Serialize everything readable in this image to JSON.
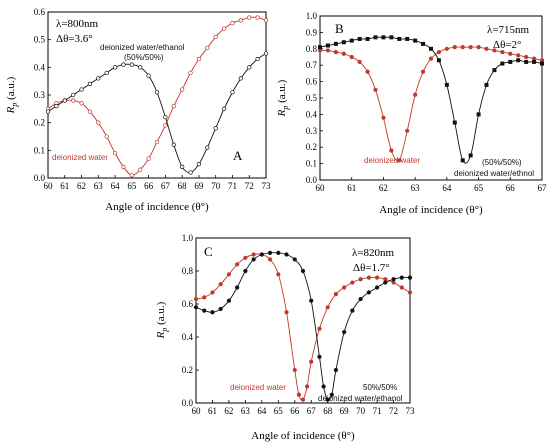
{
  "colors": {
    "red": "#c0392b",
    "black": "#111111"
  },
  "chart_data": [
    {
      "id": "A",
      "type": "line",
      "panel_letter": "A",
      "annotations": {
        "wavelength": "λ=800nm",
        "delta": "Δθ=3.6°"
      },
      "xlabel": "Angle of incidence (θ°)",
      "ylabel": "Rp (a.u.)",
      "ylabel_main": "R",
      "ylabel_sub": "p",
      "ylabel_rest": " (a.u.)",
      "xlim": [
        60,
        73
      ],
      "ylim": [
        0,
        0.6
      ],
      "xticks": [
        "60",
        "61",
        "62",
        "63",
        "64",
        "65",
        "66",
        "67",
        "68",
        "69",
        "70",
        "71",
        "72",
        "73"
      ],
      "yticks": [
        "0.0",
        "0.1",
        "0.2",
        "0.3",
        "0.4",
        "0.5",
        "0.6"
      ],
      "series": [
        {
          "name": "deionized water",
          "color": "#c0392b",
          "marker": "open-circle",
          "x": [
            60.0,
            60.5,
            61.0,
            61.5,
            62.0,
            62.5,
            63.0,
            63.5,
            64.0,
            64.5,
            65.0,
            65.5,
            66.0,
            66.5,
            67.0,
            67.5,
            68.0,
            68.5,
            69.0,
            69.5,
            70.0,
            70.5,
            71.0,
            71.5,
            72.0,
            72.5,
            73.0
          ],
          "y": [
            0.25,
            0.27,
            0.28,
            0.28,
            0.27,
            0.24,
            0.2,
            0.15,
            0.09,
            0.04,
            0.01,
            0.03,
            0.07,
            0.13,
            0.19,
            0.26,
            0.32,
            0.38,
            0.43,
            0.47,
            0.51,
            0.54,
            0.56,
            0.57,
            0.58,
            0.58,
            0.57
          ]
        },
        {
          "name": "deionized water/ethanol (50%/50%)",
          "color": "#111111",
          "marker": "open-circle",
          "x": [
            60.0,
            60.5,
            61.0,
            61.5,
            62.0,
            62.5,
            63.0,
            63.5,
            64.0,
            64.5,
            65.0,
            65.5,
            66.0,
            66.5,
            67.0,
            67.5,
            68.0,
            68.5,
            69.0,
            69.5,
            70.0,
            70.5,
            71.0,
            71.5,
            72.0,
            72.5,
            73.0
          ],
          "y": [
            0.24,
            0.26,
            0.28,
            0.3,
            0.32,
            0.34,
            0.36,
            0.38,
            0.4,
            0.41,
            0.41,
            0.4,
            0.37,
            0.31,
            0.22,
            0.12,
            0.04,
            0.02,
            0.05,
            0.11,
            0.18,
            0.25,
            0.31,
            0.36,
            0.4,
            0.43,
            0.45
          ]
        }
      ],
      "legend_labels": {
        "water": "deionized water",
        "mix_line1": "deionized water/ethanol",
        "mix_line2": "(50%/50%)"
      }
    },
    {
      "id": "B",
      "type": "line",
      "panel_letter": "B",
      "annotations": {
        "wavelength": "λ=715nm",
        "delta": "Δθ=2°"
      },
      "xlabel": "Angle of incidence (θ°)",
      "ylabel": "Rp (a.u.)",
      "ylabel_main": "R",
      "ylabel_sub": "p",
      "ylabel_rest": " (a.u.)",
      "xlim": [
        60,
        67
      ],
      "ylim": [
        0,
        1.0
      ],
      "xticks": [
        "60",
        "61",
        "62",
        "63",
        "64",
        "65",
        "66",
        "67"
      ],
      "yticks": [
        "0.0",
        "0.1",
        "0.2",
        "0.3",
        "0.4",
        "0.5",
        "0.6",
        "0.7",
        "0.8",
        "0.9",
        "1.0"
      ],
      "series": [
        {
          "name": "deionized water",
          "color": "#c0392b",
          "marker": "filled-circle",
          "x": [
            60.0,
            60.25,
            60.5,
            60.75,
            61.0,
            61.25,
            61.5,
            61.75,
            62.0,
            62.25,
            62.5,
            62.75,
            63.0,
            63.25,
            63.5,
            63.75,
            64.0,
            64.25,
            64.5,
            64.75,
            65.0,
            65.25,
            65.5,
            65.75,
            66.0,
            66.25,
            66.5,
            66.75,
            67.0
          ],
          "y": [
            0.79,
            0.79,
            0.78,
            0.77,
            0.75,
            0.72,
            0.66,
            0.55,
            0.38,
            0.18,
            0.12,
            0.3,
            0.52,
            0.66,
            0.74,
            0.78,
            0.8,
            0.81,
            0.81,
            0.81,
            0.81,
            0.8,
            0.79,
            0.78,
            0.77,
            0.76,
            0.75,
            0.74,
            0.73
          ]
        },
        {
          "name": "deionized water/ethnol (50%/50%)",
          "color": "#111111",
          "marker": "filled-square",
          "x": [
            60.0,
            60.25,
            60.5,
            60.75,
            61.0,
            61.25,
            61.5,
            61.75,
            62.0,
            62.25,
            62.5,
            62.75,
            63.0,
            63.25,
            63.5,
            63.75,
            64.0,
            64.25,
            64.5,
            64.75,
            65.0,
            65.25,
            65.5,
            65.75,
            66.0,
            66.25,
            66.5,
            66.75,
            67.0
          ],
          "y": [
            0.81,
            0.82,
            0.83,
            0.84,
            0.85,
            0.86,
            0.86,
            0.87,
            0.87,
            0.87,
            0.86,
            0.86,
            0.85,
            0.83,
            0.8,
            0.73,
            0.58,
            0.35,
            0.12,
            0.15,
            0.4,
            0.58,
            0.67,
            0.71,
            0.72,
            0.73,
            0.72,
            0.72,
            0.71
          ]
        }
      ],
      "legend_labels": {
        "water": "deionized water",
        "mix_line1": "(50%/50%)",
        "mix_line2": "deionized water/ethnol"
      }
    },
    {
      "id": "C",
      "type": "line",
      "panel_letter": "C",
      "annotations": {
        "wavelength": "λ=820nm",
        "delta": "Δθ=1.7°"
      },
      "xlabel": "Angle of incidence (θ°)",
      "ylabel": "Rp (a.u.)",
      "ylabel_main": "R",
      "ylabel_sub": "p",
      "ylabel_rest": " (a.u.)",
      "xlim": [
        60,
        73
      ],
      "ylim": [
        0,
        1.0
      ],
      "xticks": [
        "60",
        "61",
        "62",
        "63",
        "64",
        "65",
        "66",
        "67",
        "68",
        "69",
        "70",
        "71",
        "72",
        "73"
      ],
      "yticks": [
        "0.0",
        "0.2",
        "0.4",
        "0.6",
        "0.8",
        "1.0"
      ],
      "series": [
        {
          "name": "deionized water",
          "color": "#c0392b",
          "marker": "filled-circle",
          "x": [
            60.0,
            60.5,
            61.0,
            61.5,
            62.0,
            62.5,
            63.0,
            63.5,
            64.0,
            64.5,
            65.0,
            65.5,
            66.0,
            66.25,
            66.5,
            66.75,
            67.0,
            67.5,
            68.0,
            68.5,
            69.0,
            69.5,
            70.0,
            70.5,
            71.0,
            71.5,
            72.0,
            72.5,
            73.0
          ],
          "y": [
            0.63,
            0.64,
            0.67,
            0.72,
            0.78,
            0.84,
            0.88,
            0.9,
            0.9,
            0.87,
            0.78,
            0.55,
            0.2,
            0.05,
            0.02,
            0.1,
            0.25,
            0.45,
            0.58,
            0.66,
            0.7,
            0.73,
            0.75,
            0.76,
            0.76,
            0.75,
            0.73,
            0.7,
            0.67
          ]
        },
        {
          "name": "deionized water/ethanol 50%/50%",
          "color": "#111111",
          "marker": "filled-circle",
          "x": [
            60.0,
            60.5,
            61.0,
            61.5,
            62.0,
            62.5,
            63.0,
            63.5,
            64.0,
            64.5,
            65.0,
            65.5,
            66.0,
            66.5,
            67.0,
            67.5,
            67.75,
            68.0,
            68.25,
            68.5,
            69.0,
            69.5,
            70.0,
            70.5,
            71.0,
            71.5,
            72.0,
            72.5,
            73.0
          ],
          "y": [
            0.58,
            0.56,
            0.55,
            0.57,
            0.62,
            0.7,
            0.8,
            0.87,
            0.9,
            0.91,
            0.91,
            0.9,
            0.87,
            0.8,
            0.62,
            0.28,
            0.1,
            0.02,
            0.05,
            0.2,
            0.43,
            0.56,
            0.63,
            0.67,
            0.7,
            0.73,
            0.75,
            0.76,
            0.76
          ]
        }
      ],
      "legend_labels": {
        "water": "deionized water",
        "mix_line1": "50%/50%",
        "mix_line2": "deionized water/ethanol"
      }
    }
  ]
}
